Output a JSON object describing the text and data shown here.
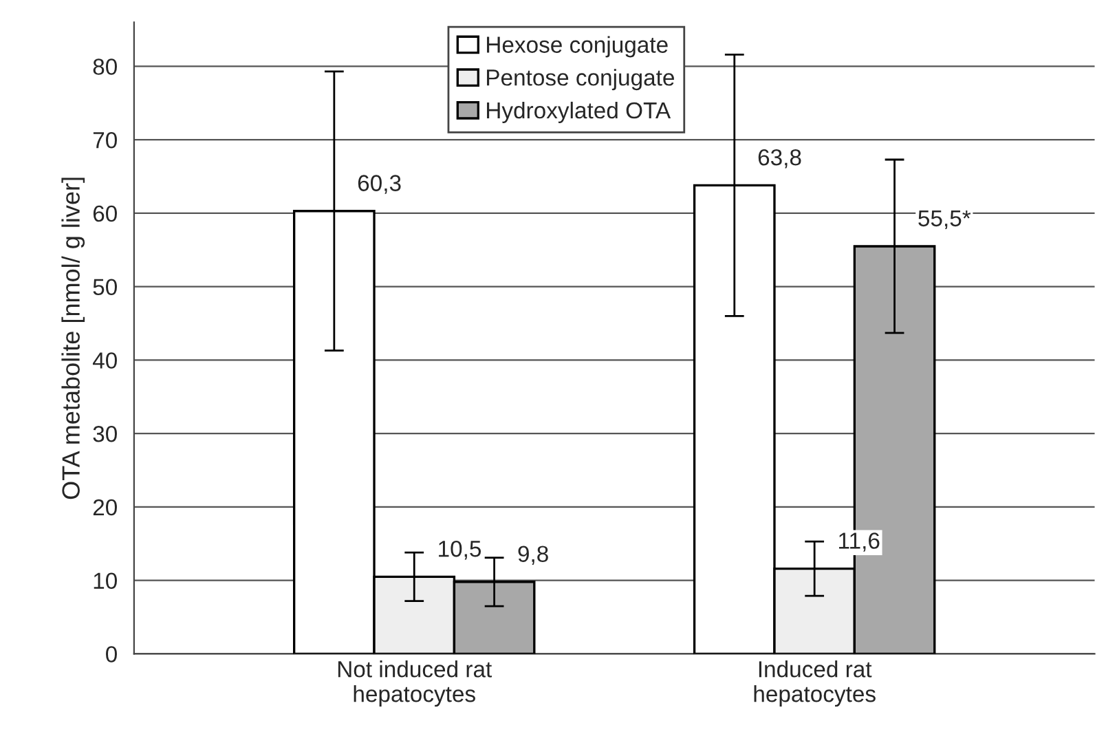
{
  "chart_data": {
    "type": "bar",
    "ylabel": "OTA metabolite [nmol/ g liver]",
    "categories": [
      "Not induced rat\nhepatocytes",
      "Induced rat\nhepatocytes"
    ],
    "series": [
      {
        "name": "Hexose conjugate",
        "color": "#ffffff",
        "values": [
          60.3,
          63.8
        ],
        "errors": [
          19,
          17.8
        ],
        "value_labels": [
          "60,3",
          "63,8"
        ]
      },
      {
        "name": "Pentose conjugate",
        "color": "#eeeeee",
        "values": [
          10.5,
          11.6
        ],
        "errors": [
          3.3,
          3.7
        ],
        "value_labels": [
          "10,5",
          "11,6"
        ]
      },
      {
        "name": "Hydroxylated OTA",
        "color": "#a8a8a8",
        "values": [
          9.8,
          55.5
        ],
        "errors": [
          3.3,
          11.8
        ],
        "value_labels": [
          "9,8",
          "55,5*"
        ]
      }
    ],
    "ylim": [
      0,
      86
    ],
    "yticks": [
      0,
      10,
      20,
      30,
      40,
      50,
      60,
      70,
      80
    ],
    "grid": "y",
    "legend": "top"
  }
}
